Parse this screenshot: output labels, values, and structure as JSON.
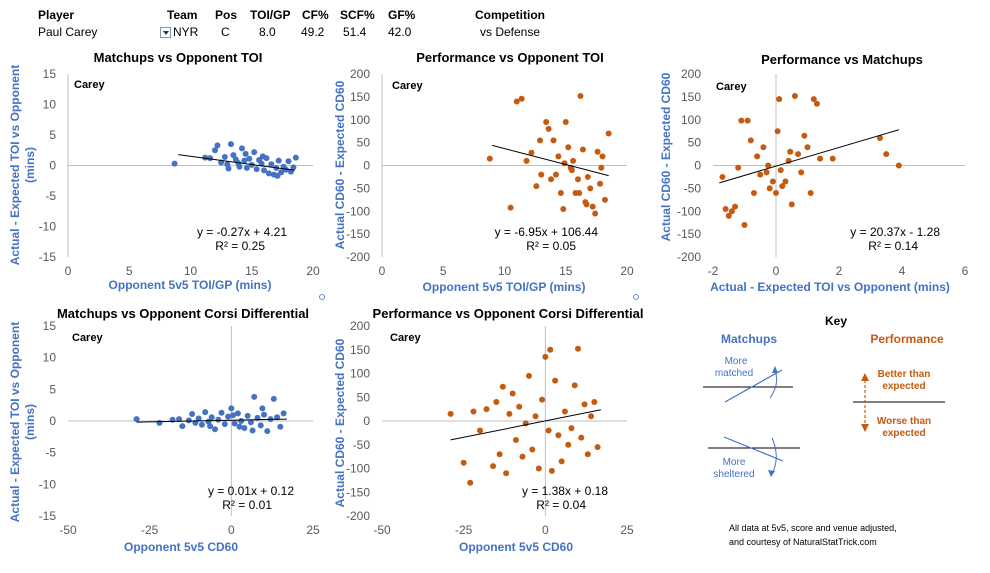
{
  "header": {
    "labels": {
      "player": "Player",
      "team": "Team",
      "pos": "Pos",
      "toi": "TOI/GP",
      "cf": "CF%",
      "scf": "SCF%",
      "gf": "GF%",
      "comp": "Competition"
    },
    "values": {
      "player": "Paul Carey",
      "team": "NYR",
      "pos": "C",
      "toi": "8.0",
      "cf": "49.2",
      "scf": "51.4",
      "gf": "42.0",
      "comp": "vs Defense"
    }
  },
  "colors": {
    "blue": "#4472c4",
    "orange": "#c55a11",
    "axis": "#bfbfbf"
  },
  "key": {
    "title": "Key",
    "matchups": "Matchups",
    "performance": "Performance",
    "more_matched": [
      "More",
      "matched"
    ],
    "more_sheltered": [
      "More",
      "sheltered"
    ],
    "better": [
      "Better than",
      "expected"
    ],
    "worse": [
      "Worse than",
      "expected"
    ]
  },
  "footer": [
    "All data at 5v5, score and venue adjusted,",
    "and courtesy of NaturalStatTrick.com"
  ],
  "chart_data": [
    {
      "type": "scatter",
      "id": "c1",
      "player_label": "Carey",
      "title": "Matchups vs Opponent TOI",
      "xlabel": "Opponent 5v5 TOI/GP (mins)",
      "ylabel": "Actual - Expected TOI vs Opponent (mins)",
      "xlim": [
        0,
        20
      ],
      "xstep": 5,
      "ylim": [
        -15,
        15
      ],
      "ystep": 5,
      "equation": "y = -0.27x + 4.21",
      "r2": "R² = 0.25",
      "trend": {
        "slope": -0.27,
        "intercept": 4.21,
        "x": [
          9,
          18.5
        ]
      },
      "points": [
        [
          8.7,
          0.3
        ],
        [
          11.2,
          1.3
        ],
        [
          11.6,
          1.2
        ],
        [
          12,
          2.5
        ],
        [
          12.2,
          3.3
        ],
        [
          12.5,
          0.5
        ],
        [
          12.8,
          1.4
        ],
        [
          13,
          0.2
        ],
        [
          13.3,
          3.5
        ],
        [
          13.5,
          1.7
        ],
        [
          13.7,
          1.0
        ],
        [
          13.9,
          0.4
        ],
        [
          14,
          -0.2
        ],
        [
          14.2,
          2.8
        ],
        [
          14.4,
          0.8
        ],
        [
          14.6,
          -0.4
        ],
        [
          14.8,
          1.1
        ],
        [
          15,
          0.1
        ],
        [
          15.2,
          2.2
        ],
        [
          15.4,
          -0.6
        ],
        [
          15.6,
          0.9
        ],
        [
          15.8,
          0.3
        ],
        [
          16,
          -0.8
        ],
        [
          16.2,
          1.2
        ],
        [
          16.4,
          -1.3
        ],
        [
          16.6,
          0.2
        ],
        [
          16.8,
          -1.5
        ],
        [
          17,
          -0.4
        ],
        [
          17.2,
          0.8
        ],
        [
          17.4,
          -1.1
        ],
        [
          17.6,
          -0.2
        ],
        [
          17.8,
          -0.7
        ],
        [
          18,
          0.7
        ],
        [
          18.2,
          -1.0
        ],
        [
          18.4,
          -0.3
        ],
        [
          18.6,
          1.3
        ],
        [
          13.1,
          -0.5
        ],
        [
          14.5,
          1.9
        ],
        [
          15.9,
          1.5
        ],
        [
          17.1,
          -1.7
        ]
      ]
    },
    {
      "type": "scatter",
      "id": "c2",
      "player_label": "Carey",
      "title": "Performance vs Opponent TOI",
      "xlabel": "Opponent 5v5 TOI/GP (mins)",
      "ylabel": "Actual CD60 - Expected CD60",
      "xlim": [
        0,
        20
      ],
      "xstep": 5,
      "ylim": [
        -200,
        200
      ],
      "ystep": 50,
      "equation": "y = -6.95x + 106.44",
      "r2": "R² = 0.05",
      "trend": {
        "slope": -6.95,
        "intercept": 106.44,
        "x": [
          9,
          18.5
        ]
      },
      "points": [
        [
          8.8,
          15
        ],
        [
          10.5,
          -92
        ],
        [
          11,
          140
        ],
        [
          11.4,
          146
        ],
        [
          11.8,
          10
        ],
        [
          12.2,
          28
        ],
        [
          12.6,
          -45
        ],
        [
          13,
          -20
        ],
        [
          13.4,
          95
        ],
        [
          13.6,
          80
        ],
        [
          13.8,
          -30
        ],
        [
          14,
          55
        ],
        [
          14.2,
          -20
        ],
        [
          14.4,
          20
        ],
        [
          14.6,
          -60
        ],
        [
          14.8,
          -95
        ],
        [
          15,
          95
        ],
        [
          15.2,
          40
        ],
        [
          15.4,
          -5
        ],
        [
          15.6,
          10
        ],
        [
          15.8,
          -60
        ],
        [
          16,
          -30
        ],
        [
          16.2,
          152
        ],
        [
          16.4,
          35
        ],
        [
          16.6,
          -80
        ],
        [
          16.8,
          -25
        ],
        [
          17,
          -50
        ],
        [
          17.2,
          -90
        ],
        [
          17.4,
          -105
        ],
        [
          17.6,
          30
        ],
        [
          17.8,
          -40
        ],
        [
          18,
          20
        ],
        [
          18.2,
          -75
        ],
        [
          18.5,
          70
        ],
        [
          14.9,
          5
        ],
        [
          16.7,
          -85
        ],
        [
          12.9,
          55
        ],
        [
          15.5,
          -10
        ],
        [
          17.9,
          -5
        ],
        [
          16.1,
          -60
        ]
      ]
    },
    {
      "type": "scatter",
      "id": "c3",
      "player_label": "Carey",
      "title": "Performance vs Matchups",
      "xlabel": "Actual - Expected TOI vs Opponent (mins)",
      "ylabel": "Actual CD60 - Expected CD60",
      "xlim": [
        -2,
        6
      ],
      "xstep": 2,
      "ylim": [
        -200,
        200
      ],
      "ystep": 50,
      "equation": "y = 20.37x - 1.28",
      "r2": "R² = 0.14",
      "trend": {
        "slope": 20.37,
        "intercept": -1.28,
        "x": [
          -1.8,
          3.9
        ]
      },
      "points": [
        [
          -1.7,
          -25
        ],
        [
          -1.6,
          -95
        ],
        [
          -1.5,
          -110
        ],
        [
          -1.4,
          -100
        ],
        [
          -1.3,
          -90
        ],
        [
          -1.2,
          -5
        ],
        [
          -1.1,
          98
        ],
        [
          -1.0,
          -130
        ],
        [
          -0.9,
          98
        ],
        [
          -0.8,
          55
        ],
        [
          -0.7,
          -60
        ],
        [
          -0.6,
          20
        ],
        [
          -0.5,
          -20
        ],
        [
          -0.4,
          40
        ],
        [
          -0.3,
          -15
        ],
        [
          -0.2,
          -50
        ],
        [
          -0.1,
          -35
        ],
        [
          0,
          -60
        ],
        [
          0.05,
          75
        ],
        [
          0.1,
          145
        ],
        [
          0.2,
          -45
        ],
        [
          0.3,
          -35
        ],
        [
          0.4,
          10
        ],
        [
          0.5,
          -85
        ],
        [
          0.6,
          152
        ],
        [
          0.7,
          25
        ],
        [
          0.8,
          -15
        ],
        [
          0.9,
          65
        ],
        [
          1.0,
          40
        ],
        [
          1.1,
          -60
        ],
        [
          1.2,
          145
        ],
        [
          1.3,
          135
        ],
        [
          1.4,
          15
        ],
        [
          1.8,
          15
        ],
        [
          3.3,
          60
        ],
        [
          3.5,
          25
        ],
        [
          3.9,
          0
        ],
        [
          -0.25,
          0
        ],
        [
          0.15,
          -10
        ],
        [
          0.45,
          30
        ]
      ]
    },
    {
      "type": "scatter",
      "id": "c4",
      "player_label": "Carey",
      "title": "Matchups vs Opponent Corsi Differential",
      "xlabel": "Opponent 5v5 CD60",
      "ylabel": "Actual - Expected TOI vs Opponent (mins)",
      "xlim": [
        -50,
        25
      ],
      "xstep": 25,
      "ylim": [
        -15,
        15
      ],
      "ystep": 5,
      "equation": "y = 0.01x + 0.12",
      "r2": "R² = 0.01",
      "trend": {
        "slope": 0.01,
        "intercept": 0.12,
        "x": [
          -29,
          17
        ]
      },
      "points": [
        [
          -29,
          0.3
        ],
        [
          -22,
          -0.3
        ],
        [
          -18,
          0.2
        ],
        [
          -15,
          -0.8
        ],
        [
          -13,
          0.1
        ],
        [
          -12,
          1.1
        ],
        [
          -11,
          -0.3
        ],
        [
          -10,
          0.4
        ],
        [
          -9,
          -0.6
        ],
        [
          -8,
          1.4
        ],
        [
          -7,
          -0.1
        ],
        [
          -6,
          0.6
        ],
        [
          -5,
          -1.3
        ],
        [
          -4,
          0.2
        ],
        [
          -3,
          1.3
        ],
        [
          -2,
          -0.5
        ],
        [
          -1,
          0.7
        ],
        [
          0,
          2.0
        ],
        [
          1,
          -0.4
        ],
        [
          2,
          1.2
        ],
        [
          3,
          0.0
        ],
        [
          4,
          -1.1
        ],
        [
          5,
          0.8
        ],
        [
          6,
          -0.2
        ],
        [
          7,
          3.8
        ],
        [
          8,
          0.5
        ],
        [
          9,
          -0.7
        ],
        [
          10,
          1.0
        ],
        [
          11,
          -1.6
        ],
        [
          12,
          0.3
        ],
        [
          13,
          3.5
        ],
        [
          14,
          0.6
        ],
        [
          15,
          -0.9
        ],
        [
          16,
          1.2
        ],
        [
          -16,
          0.3
        ],
        [
          -6.5,
          -0.8
        ],
        [
          0.5,
          0.9
        ],
        [
          6.5,
          -1.5
        ],
        [
          9.5,
          2.0
        ],
        [
          2.5,
          -0.9
        ]
      ]
    },
    {
      "type": "scatter",
      "id": "c5",
      "player_label": "Carey",
      "title": "Performance vs Opponent Corsi Differential",
      "xlabel": "Opponent 5v5 CD60",
      "ylabel": "Actual CD60 - Expected CD60",
      "xlim": [
        -50,
        25
      ],
      "xstep": 25,
      "ylim": [
        -200,
        200
      ],
      "ystep": 50,
      "equation": "y = 1.38x + 0.18",
      "r2": "R² = 0.04",
      "trend": {
        "slope": 1.38,
        "intercept": 0.18,
        "x": [
          -29,
          17
        ]
      },
      "points": [
        [
          -29,
          15
        ],
        [
          -25,
          -88
        ],
        [
          -23,
          -130
        ],
        [
          -22,
          20
        ],
        [
          -20,
          -20
        ],
        [
          -18,
          25
        ],
        [
          -16,
          -95
        ],
        [
          -15,
          40
        ],
        [
          -14,
          -70
        ],
        [
          -13,
          72
        ],
        [
          -12,
          -110
        ],
        [
          -11,
          15
        ],
        [
          -10,
          58
        ],
        [
          -9,
          -40
        ],
        [
          -8,
          30
        ],
        [
          -7,
          -75
        ],
        [
          -6,
          -5
        ],
        [
          -5,
          95
        ],
        [
          -4,
          -60
        ],
        [
          -3,
          10
        ],
        [
          -2,
          -100
        ],
        [
          -1,
          45
        ],
        [
          0,
          135
        ],
        [
          1,
          -20
        ],
        [
          2,
          -105
        ],
        [
          3,
          85
        ],
        [
          4,
          -30
        ],
        [
          5,
          -85
        ],
        [
          6,
          20
        ],
        [
          7,
          -50
        ],
        [
          8,
          -15
        ],
        [
          9,
          75
        ],
        [
          10,
          152
        ],
        [
          11,
          -35
        ],
        [
          12,
          35
        ],
        [
          13,
          -70
        ],
        [
          14,
          10
        ],
        [
          15,
          40
        ],
        [
          16,
          -55
        ],
        [
          1.5,
          150
        ]
      ]
    }
  ]
}
